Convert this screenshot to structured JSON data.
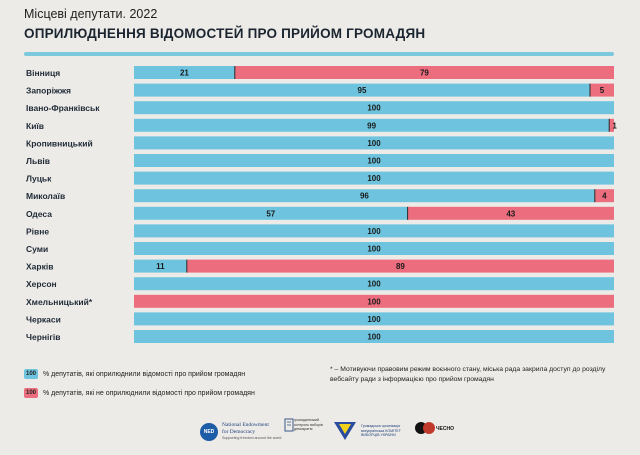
{
  "header": {
    "subtitle": "Місцеві депутати. 2022",
    "title": "ОПРИЛЮДНЕННЯ ВІДОМОСТЕЙ ПРО ПРИЙОМ ГРОМАДЯН"
  },
  "colors": {
    "published": "#6ec4de",
    "not_published": "#ec6d7d",
    "rule": "#7cc8dc",
    "background": "#ecebe8"
  },
  "chart_data": {
    "type": "bar",
    "orientation": "horizontal",
    "stacked": true,
    "xlim": [
      0,
      100
    ],
    "categories": [
      "Вінниця",
      "Запоріжжя",
      "Івано-Франківськ",
      "Київ",
      "Кропивницький",
      "Львів",
      "Луцьк",
      "Миколаїв",
      "Одеса",
      "Рівне",
      "Суми",
      "Харків",
      "Херсон",
      "Хмельницький*",
      "Черкаси",
      "Чернігів"
    ],
    "series": [
      {
        "name": "% депутатів, які оприлюднили відомості про прийом громадян",
        "values": [
          21,
          95,
          100,
          99,
          100,
          100,
          100,
          96,
          57,
          100,
          100,
          11,
          100,
          0,
          100,
          100
        ]
      },
      {
        "name": "% депутатів, які не оприлюднили відомості про прийом громадян",
        "values": [
          79,
          5,
          0,
          1,
          0,
          0,
          0,
          4,
          43,
          0,
          0,
          89,
          0,
          100,
          0,
          0
        ]
      }
    ]
  },
  "legend": {
    "items": [
      {
        "swatch_label": "100",
        "label": "% депутатів, які оприлюднили відомості про прийом громадян"
      },
      {
        "swatch_label": "100",
        "label": "% депутатів, які не оприлюднили відомості про прийом громадян"
      }
    ]
  },
  "note": "* – Мотивуючи правовим режим воєнного стану, міська рада закрила доступ до розділу вебсайту ради з інформацією про прийом громадян",
  "logos": {
    "ned_abbr": "NED",
    "ned_name_1": "National Endowment",
    "ned_name_2": "for Democracy",
    "ned_tagline": "Supporting freedom around the world",
    "second_text": "громадянський контроль виборів демократія",
    "kvu_text": "Громадська організація всеукраїнська КОМІТЕТ ВИБОРЦІВ УКРАЇНИ",
    "chesno": "ЧЕСНО"
  }
}
